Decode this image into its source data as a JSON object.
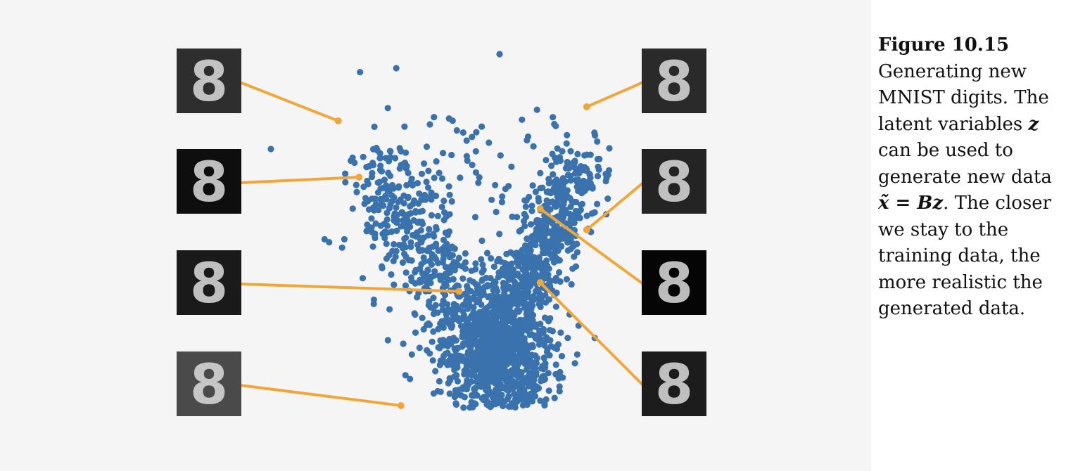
{
  "caption": {
    "label": "Figure 10.15",
    "text_1": "Generating new MNIST digits. The latent variables",
    "var_z": "z",
    "text_2": "can be used to generate new data",
    "math_expr": "x̃ = Bz",
    "text_3": ". The closer we stay to the training data, the more realistic the generated data."
  },
  "colors": {
    "points": "#3a72ad",
    "leader": "#f0a73a",
    "panel_bg": "#f5f5f5"
  },
  "digit_glyph": "8",
  "digit_images": [
    {
      "side": "left",
      "bg": "#2e2e2e",
      "target": [
        0.58,
        0.62
      ]
    },
    {
      "side": "left",
      "bg": "#0e0e0e",
      "target": [
        0.76,
        0.3
      ]
    },
    {
      "side": "left",
      "bg": "#1a1a1a",
      "target": [
        1.62,
        -0.35
      ]
    },
    {
      "side": "left",
      "bg": "#4a4a4a",
      "target": [
        1.12,
        -1.0
      ]
    },
    {
      "side": "right",
      "bg": "#2a2a2a",
      "target": [
        2.72,
        0.7
      ]
    },
    {
      "side": "right",
      "bg": "#242424",
      "target": [
        2.72,
        0.0
      ]
    },
    {
      "side": "right",
      "bg": "#050505",
      "target": [
        2.32,
        0.12
      ]
    },
    {
      "side": "right",
      "bg": "#1c1c1c",
      "target": [
        2.32,
        -0.3
      ]
    }
  ]
}
